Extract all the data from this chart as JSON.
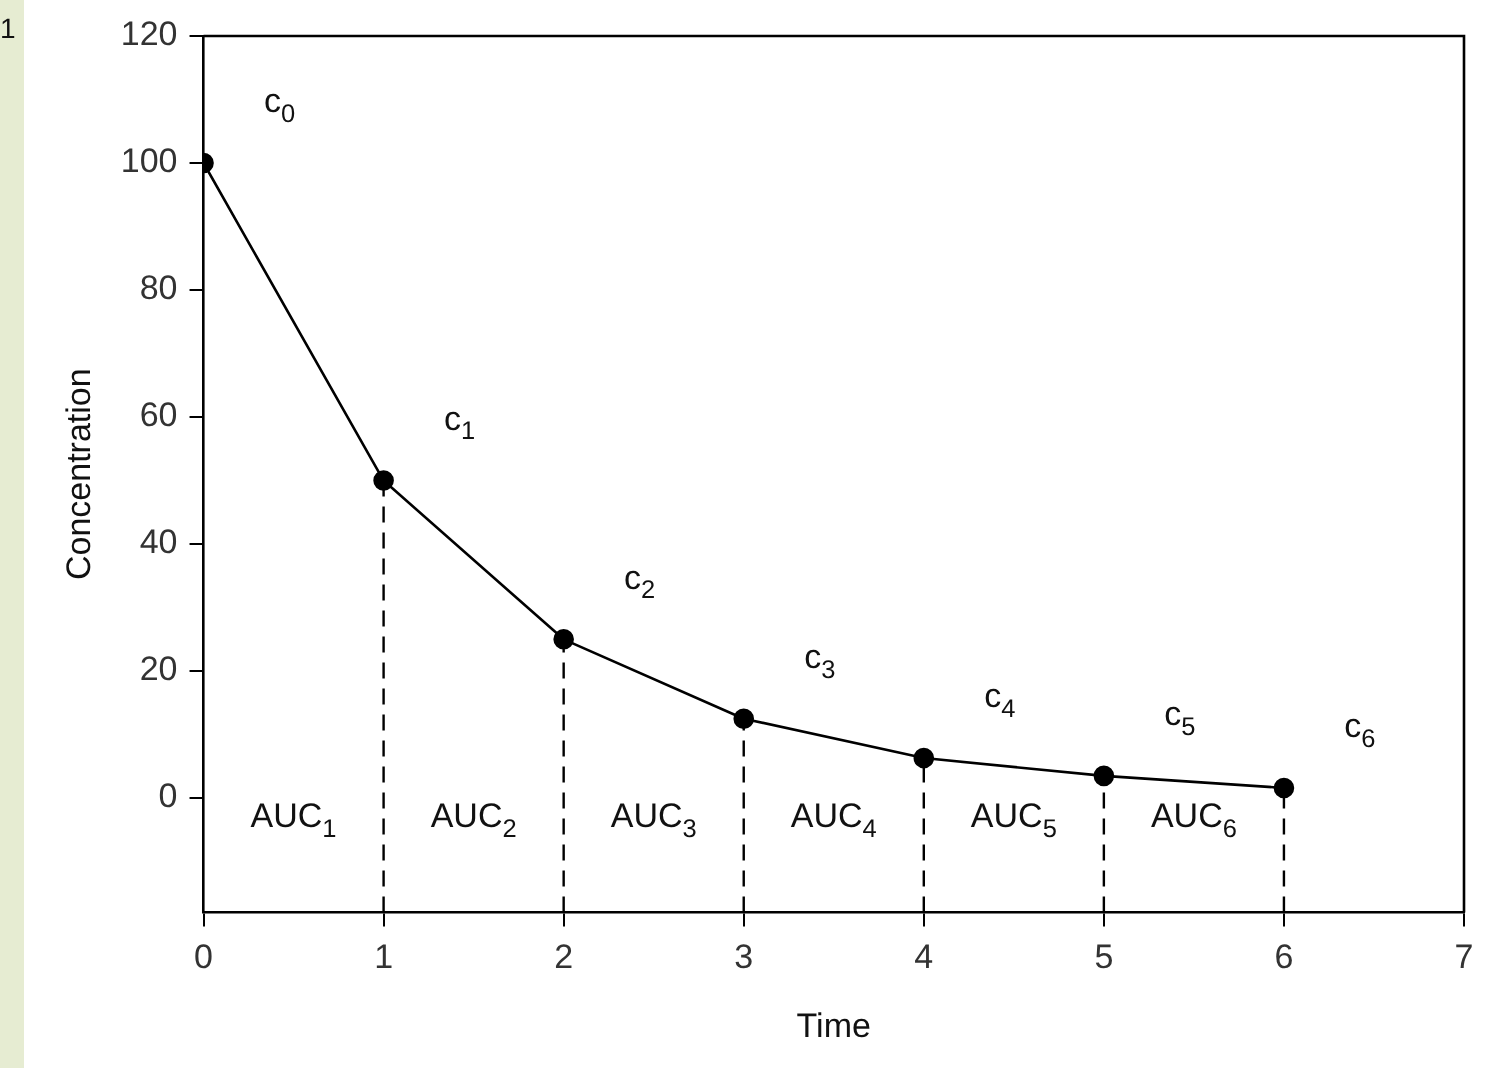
{
  "chart_data": {
    "type": "line",
    "xlabel": "Time",
    "ylabel": "Concentration",
    "x": [
      0,
      1,
      2,
      3,
      4,
      5,
      6
    ],
    "series": [
      {
        "color": "#000000",
        "values": [
          100,
          50,
          25,
          12.5,
          6.3,
          3.5,
          1.6
        ]
      }
    ],
    "xlim": [
      0,
      7
    ],
    "xticks": [
      0,
      1,
      2,
      3,
      4,
      5,
      6,
      7
    ],
    "ylim": [
      -18,
      120
    ],
    "yticks": [
      0,
      20,
      40,
      60,
      80,
      100,
      120
    ],
    "grid": false,
    "legend": false,
    "marker": "circle",
    "line_style": "solid",
    "ref_lines": [
      {
        "axis": "x",
        "value": 1,
        "line_style": "dashed",
        "color": "#000000"
      },
      {
        "axis": "x",
        "value": 2,
        "line_style": "dashed",
        "color": "#000000"
      },
      {
        "axis": "x",
        "value": 3,
        "line_style": "dashed",
        "color": "#000000"
      },
      {
        "axis": "x",
        "value": 4,
        "line_style": "dashed",
        "color": "#000000"
      },
      {
        "axis": "x",
        "value": 5,
        "line_style": "dashed",
        "color": "#000000"
      },
      {
        "axis": "x",
        "value": 6,
        "line_style": "dashed",
        "color": "#000000"
      }
    ],
    "annotations": [
      "1",
      {
        "text": "c$_{0}$",
        "x": 0,
        "y": 100
      },
      {
        "text": "c$_{1}$",
        "x": 1,
        "y": 50
      },
      {
        "text": "c$_{2}$",
        "x": 2,
        "y": 25
      },
      {
        "text": "c$_{3}$",
        "x": 3,
        "y": 12.5
      },
      {
        "text": "c$_{4}$",
        "x": 4,
        "y": 6.3
      },
      {
        "text": "c$_{5}$",
        "x": 5,
        "y": 3.5
      },
      {
        "text": "c$_{6}$",
        "x": 6,
        "y": 1.6
      },
      "AUC$_{1}$",
      "AUC$_{2}$",
      "AUC$_{3}$",
      "AUC$_{4}$",
      "AUC$_{5}$",
      "AUC$_{6}$"
    ]
  }
}
